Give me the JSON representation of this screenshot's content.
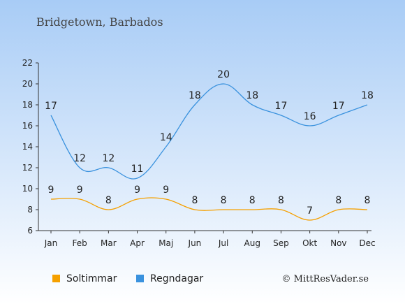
{
  "chart_data": {
    "type": "line",
    "title": "Bridgetown, Barbados",
    "categories": [
      "Jan",
      "Feb",
      "Mar",
      "Apr",
      "Maj",
      "Jun",
      "Jul",
      "Aug",
      "Sep",
      "Okt",
      "Nov",
      "Dec"
    ],
    "series": [
      {
        "name": "Soltimmar",
        "values": [
          9,
          9,
          8,
          9,
          9,
          8,
          8,
          8,
          8,
          7,
          8,
          8
        ],
        "color": "#f5a000"
      },
      {
        "name": "Regndagar",
        "values": [
          17,
          12,
          12,
          11,
          14,
          18,
          20,
          18,
          17,
          16,
          17,
          18
        ],
        "color": "#3a92de"
      }
    ],
    "ylim": [
      6,
      22
    ],
    "yticks": [
      6,
      8,
      10,
      12,
      14,
      16,
      18,
      20,
      22
    ],
    "grid": false,
    "legend": "bottom-left",
    "background": {
      "top": "#a8ccf6",
      "bottom": "#ffffff"
    }
  },
  "credit": "© MittResVader.se"
}
